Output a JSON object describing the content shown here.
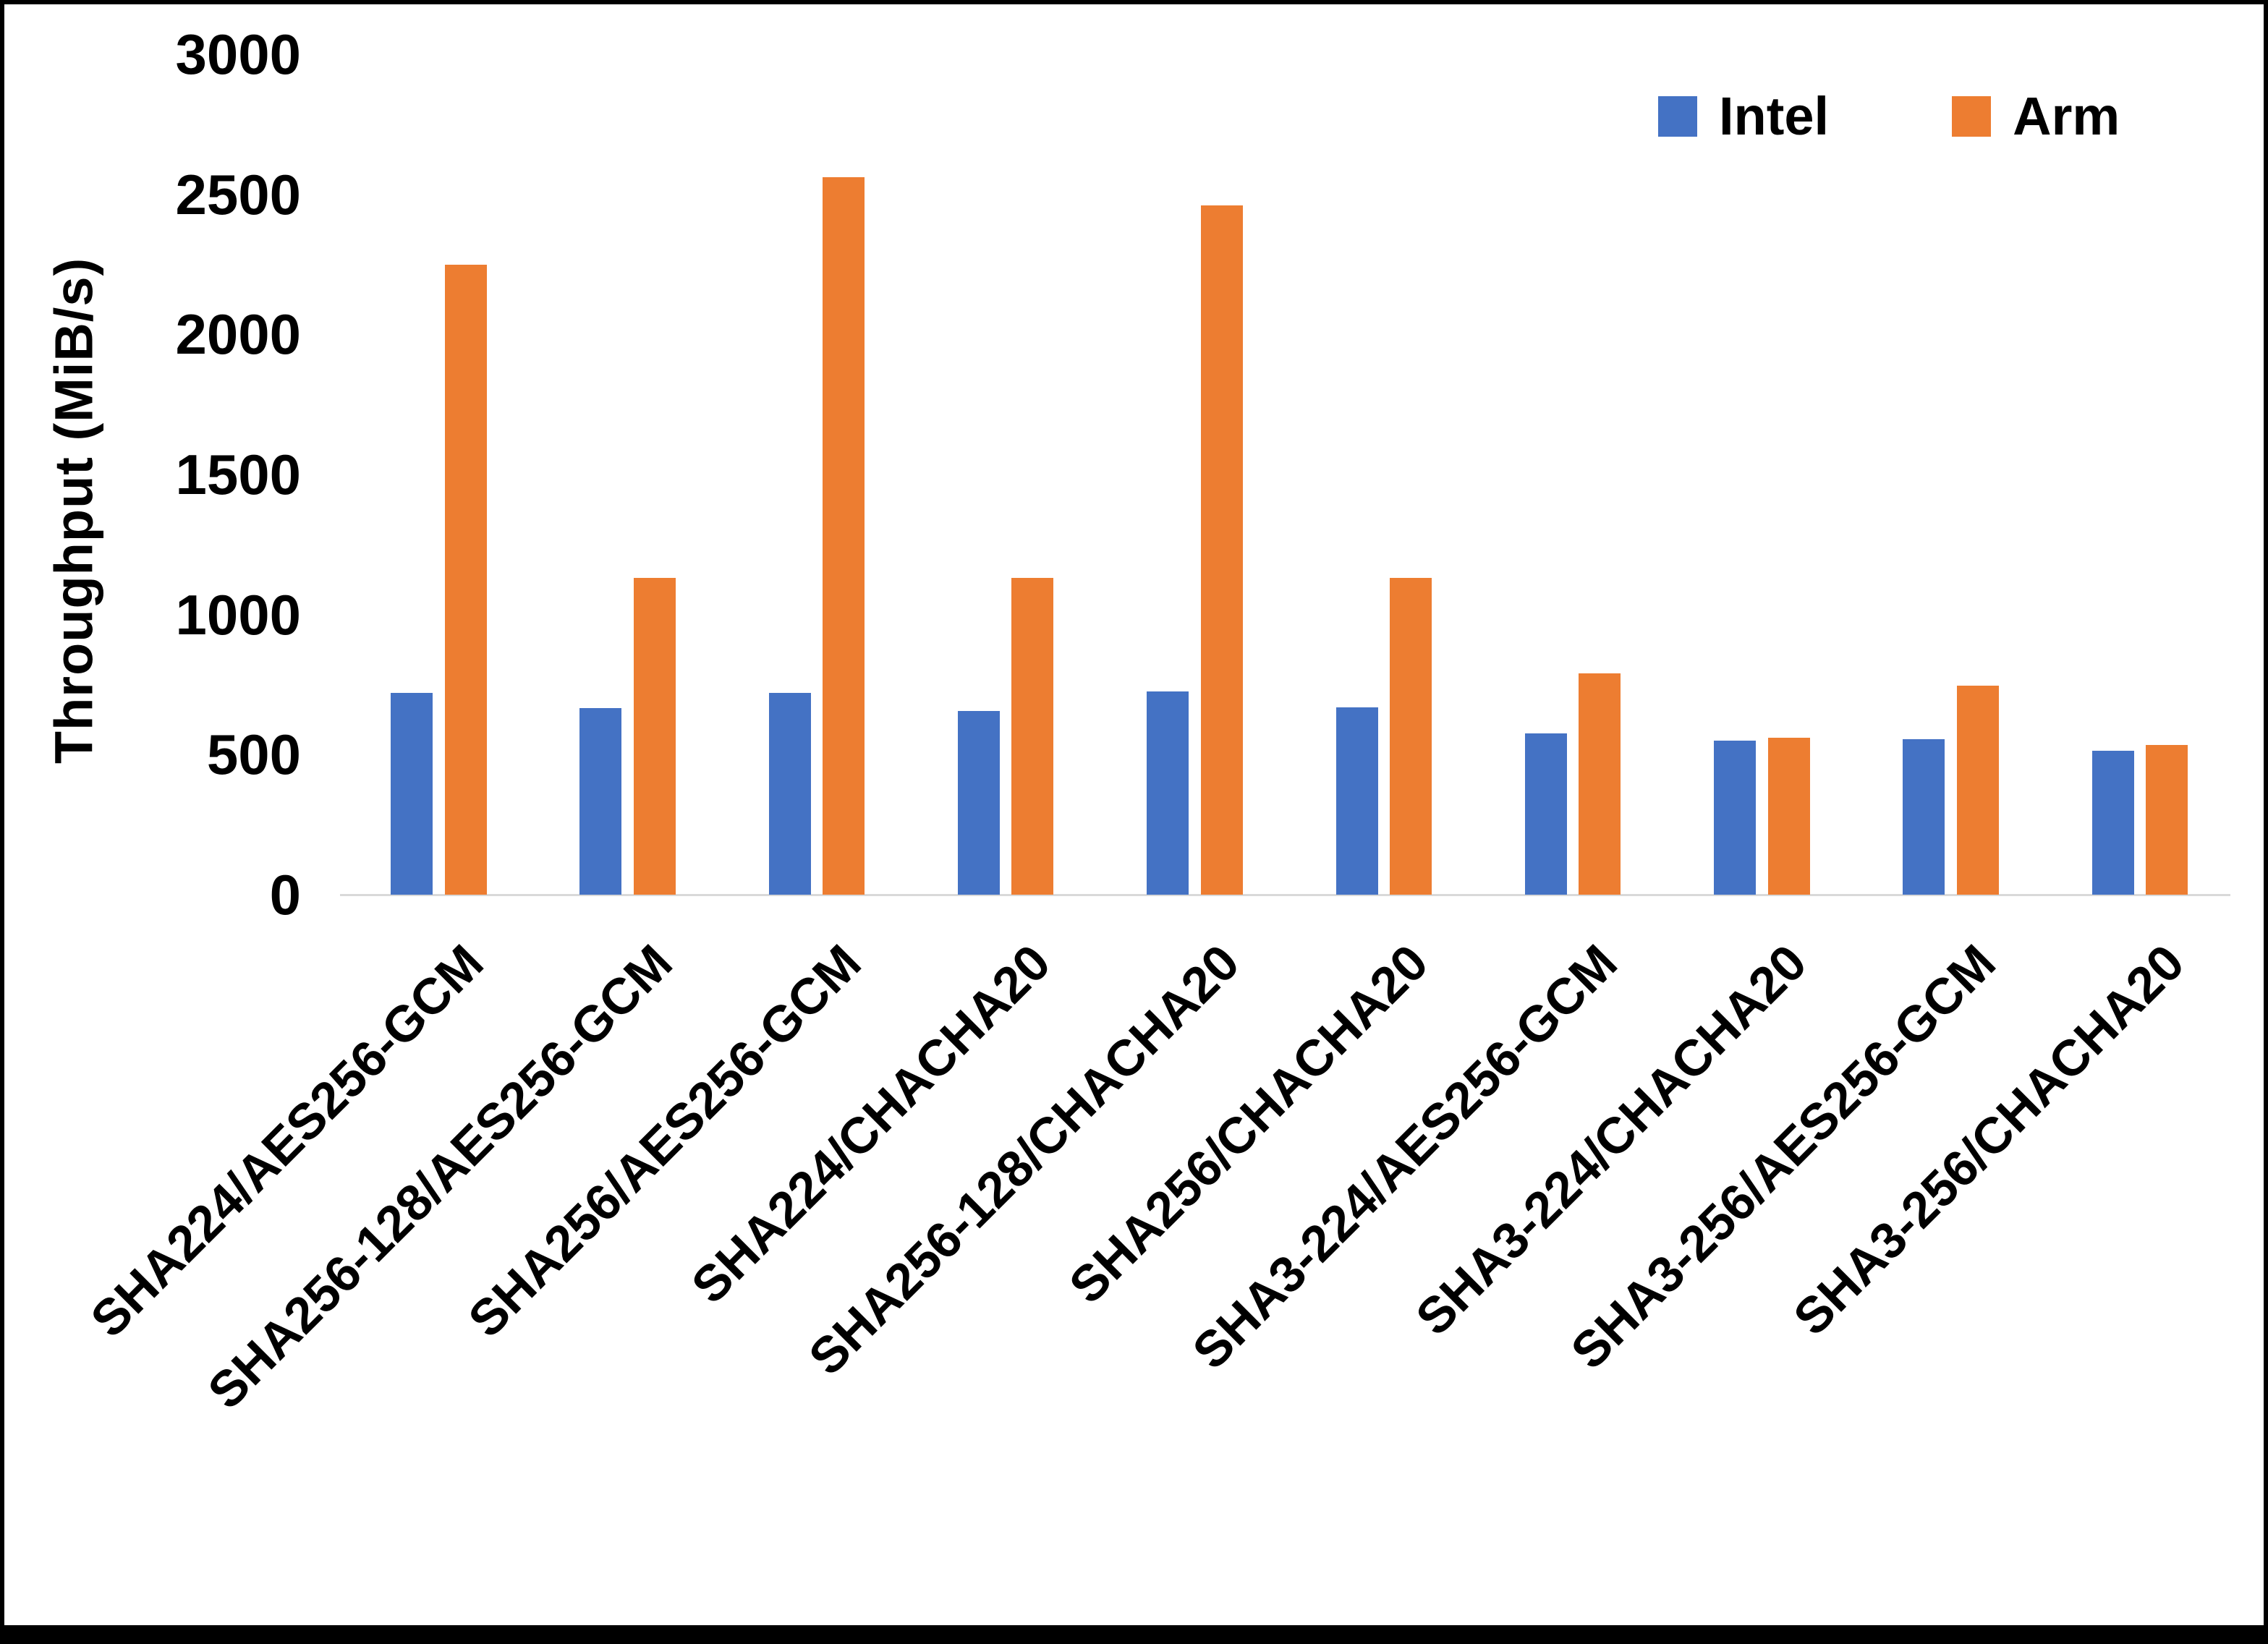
{
  "chart_data": {
    "type": "bar",
    "title": "",
    "xlabel": "",
    "ylabel": "Throughput (MiB/s)",
    "ylim": [
      0,
      3000
    ],
    "yticks": [
      0,
      500,
      1000,
      1500,
      2000,
      2500,
      3000
    ],
    "grid": false,
    "legend_position": "top-right",
    "axis_line_color": "#D9D9D9",
    "text_color": "#000000",
    "categories": [
      "SHA224/AES256-GCM",
      "SHA256-128/AES256-GCM",
      "SHA256/AES256-GCM",
      "SHA224/CHACHA20",
      "SHA256-128/CHACHA20",
      "SHA256/CHACHA20",
      "SHA3-224/AES256-GCM",
      "SHA3-224/CHACHA20",
      "SHA3-256/AES256-GCM",
      "SHA3-256/CHACHA20"
    ],
    "series": [
      {
        "name": "Intel",
        "color": "#4472C4",
        "values": [
          720,
          665,
          720,
          655,
          725,
          670,
          575,
          550,
          555,
          515
        ]
      },
      {
        "name": "Arm",
        "color": "#ED7D31",
        "values": [
          2250,
          1130,
          2560,
          1130,
          2460,
          1130,
          790,
          560,
          745,
          535
        ]
      }
    ]
  }
}
